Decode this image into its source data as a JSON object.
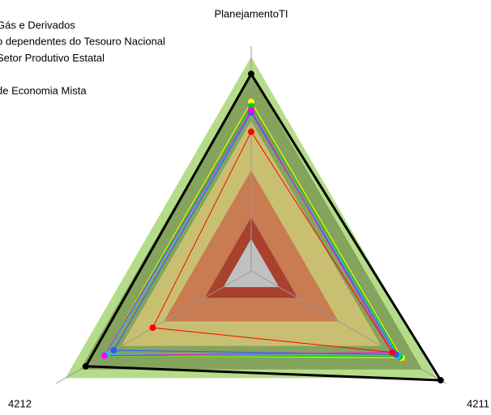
{
  "chart_data": {
    "type": "radar",
    "categories": [
      "PlanejamentoTI",
      "4211",
      "4212"
    ],
    "rlim": [
      0,
      1.05
    ],
    "bands": [
      {
        "to": 1.0,
        "color": "#b5dc8a"
      },
      {
        "to": 0.92,
        "color": "#84a35c"
      },
      {
        "to": 0.7,
        "color": "#c8c070"
      },
      {
        "to": 0.47,
        "color": "#c97b52"
      },
      {
        "to": 0.25,
        "color": "#a8412e"
      },
      {
        "to": 0.15,
        "color": "#c0c0c0"
      }
    ],
    "legend_labels": [
      "Gás e Derivados",
      "o dependentes do Tesouro Nacional",
      "Setor Produtivo Estatal",
      null,
      "de Economia Mista"
    ],
    "series": [
      {
        "color": "#000000",
        "width": 3,
        "values": [
          0.92,
          1.02,
          0.89
        ]
      },
      {
        "color": "#ffff00",
        "width": 1,
        "values": [
          0.79,
          0.81,
          0.79
        ]
      },
      {
        "color": "#00cc00",
        "width": 1,
        "values": [
          0.77,
          0.8,
          0.79
        ]
      },
      {
        "color": "#00ccff",
        "width": 1,
        "values": [
          0.74,
          0.79,
          0.78
        ]
      },
      {
        "color": "#3355ff",
        "width": 1,
        "values": [
          0.74,
          0.78,
          0.74
        ]
      },
      {
        "color": "#ff00ff",
        "width": 1,
        "values": [
          0.75,
          0.76,
          0.79
        ]
      },
      {
        "color": "#ff0000",
        "width": 1,
        "values": [
          0.65,
          0.76,
          0.53
        ]
      }
    ]
  }
}
